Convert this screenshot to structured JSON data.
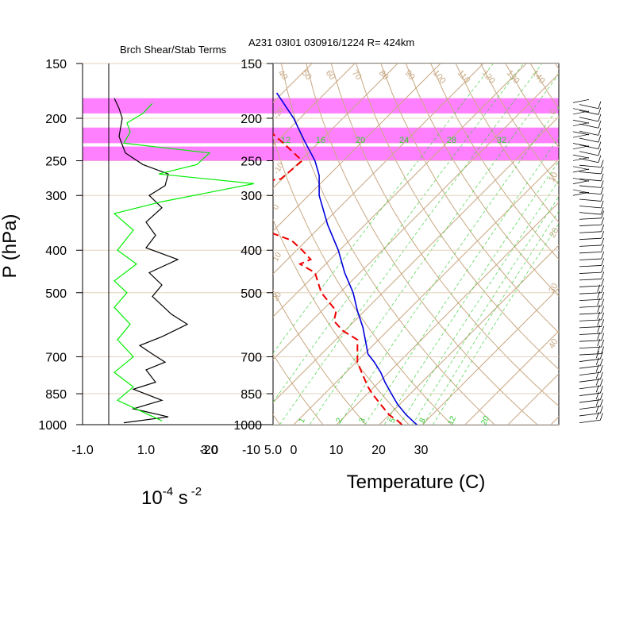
{
  "header": "A231 03I01 030916/1224 R= 424km",
  "colors": {
    "shear_band": "#ff80ff",
    "shear": "#000000",
    "stability": "#00ee00",
    "temperature": "#0000dd",
    "dewpoint": "#ee0000",
    "skewt_grid": "#c8a882",
    "mixing_ratio": "#33cc33"
  },
  "chart_data": [
    {
      "type": "line",
      "title": "Brch Shear/Stab Terms",
      "ylabel": "P (hPa)",
      "xlabel_base": "10",
      "xlabel_exp": "-4",
      "xlabel_unit": "s",
      "xlabel_unit_exp": "-2",
      "xlim": [
        -1.0,
        5.0
      ],
      "ylim": [
        1000,
        150
      ],
      "y_scale": "log",
      "x_ticks": [
        "-1.0",
        "1.0",
        "3.0",
        "5.0"
      ],
      "y_ticks": [
        "150",
        "200",
        "250",
        "300",
        "400",
        "500",
        "700",
        "850",
        "1000"
      ],
      "highlight_bands": [
        [
          180,
          195
        ],
        [
          210,
          228
        ],
        [
          232,
          250
        ]
      ],
      "series": [
        {
          "role": "shear",
          "points": [
            [
              0.0,
              180
            ],
            [
              0.15,
              190
            ],
            [
              0.25,
              200
            ],
            [
              0.15,
              220
            ],
            [
              0.35,
              240
            ],
            [
              0.9,
              255
            ],
            [
              1.7,
              268
            ],
            [
              1.6,
              285
            ],
            [
              1.1,
              300
            ],
            [
              1.5,
              320
            ],
            [
              1.0,
              345
            ],
            [
              1.3,
              370
            ],
            [
              1.0,
              395
            ],
            [
              2.0,
              420
            ],
            [
              1.1,
              450
            ],
            [
              1.5,
              480
            ],
            [
              1.2,
              510
            ],
            [
              1.8,
              560
            ],
            [
              2.3,
              590
            ],
            [
              1.5,
              630
            ],
            [
              0.8,
              660
            ],
            [
              1.2,
              690
            ],
            [
              1.6,
              720
            ],
            [
              1.0,
              750
            ],
            [
              1.3,
              800
            ],
            [
              0.6,
              830
            ],
            [
              1.5,
              880
            ],
            [
              0.6,
              920
            ],
            [
              1.7,
              960
            ],
            [
              0.3,
              990
            ]
          ]
        },
        {
          "role": "stability",
          "points": [
            [
              1.2,
              185
            ],
            [
              0.9,
              195
            ],
            [
              0.4,
              205
            ],
            [
              0.5,
              215
            ],
            [
              0.3,
              228
            ],
            [
              3.0,
              240
            ],
            [
              2.6,
              255
            ],
            [
              1.4,
              268
            ],
            [
              4.4,
              282
            ],
            [
              1.5,
              310
            ],
            [
              0.0,
              330
            ],
            [
              0.6,
              360
            ],
            [
              0.1,
              400
            ],
            [
              0.7,
              430
            ],
            [
              0.0,
              470
            ],
            [
              0.4,
              500
            ],
            [
              0.0,
              540
            ],
            [
              0.5,
              590
            ],
            [
              0.1,
              640
            ],
            [
              0.6,
              700
            ],
            [
              0.0,
              760
            ],
            [
              0.6,
              820
            ],
            [
              0.1,
              880
            ],
            [
              1.5,
              980
            ]
          ]
        }
      ]
    },
    {
      "type": "line",
      "title": "",
      "xlabel": "Temperature (C)",
      "ylabel": "",
      "xlim": [
        -25,
        40
      ],
      "ylim": [
        1000,
        150
      ],
      "y_scale": "log",
      "skew": "skew-T log-p",
      "x_ticks": [
        "-20",
        "-10",
        "0",
        "10",
        "20",
        "30"
      ],
      "y_ticks": [
        "150",
        "200",
        "250",
        "300",
        "400",
        "500",
        "700",
        "850",
        "1000"
      ],
      "dry_adiabat_labels": [
        "40",
        "50",
        "60",
        "70",
        "80",
        "90",
        "100",
        "110",
        "120",
        "130",
        "140",
        "150"
      ],
      "mixing_ratio_labels_top": [
        "12",
        "16",
        "20",
        "24",
        "28",
        "32"
      ],
      "mixing_ratio_labels_bottom": [
        "1",
        "2",
        "3",
        "5",
        "8",
        "12",
        "20"
      ],
      "isotherm_labels": [
        "-20",
        "-10",
        "0",
        "10",
        "20"
      ],
      "series": [
        {
          "role": "temperature",
          "points": [
            [
              29.0,
              1000
            ],
            [
              28.0,
              980
            ],
            [
              26.5,
              950
            ],
            [
              24.5,
              900
            ],
            [
              23.0,
              850
            ],
            [
              21.5,
              800
            ],
            [
              20.5,
              760
            ],
            [
              19.0,
              720
            ],
            [
              17.5,
              690
            ],
            [
              17.0,
              650
            ],
            [
              16.3,
              600
            ],
            [
              15.0,
              550
            ],
            [
              14.0,
              500
            ],
            [
              12.0,
              450
            ],
            [
              10.5,
              400
            ],
            [
              8.0,
              350
            ],
            [
              6.0,
              300
            ],
            [
              6.0,
              270
            ],
            [
              5.0,
              250
            ],
            [
              2.5,
              225
            ],
            [
              0.0,
              200
            ],
            [
              -4.0,
              175
            ]
          ]
        },
        {
          "role": "dewpoint",
          "points": [
            [
              25.5,
              1000
            ],
            [
              24.5,
              980
            ],
            [
              22.5,
              950
            ],
            [
              20.5,
              900
            ],
            [
              18.5,
              850
            ],
            [
              17.5,
              820
            ],
            [
              16.0,
              760
            ],
            [
              15.0,
              720
            ],
            [
              15.0,
              680
            ],
            [
              15.0,
              640
            ],
            [
              11.5,
              610
            ],
            [
              9.5,
              580
            ],
            [
              10.0,
              550
            ],
            [
              6.5,
              500
            ],
            [
              5.0,
              450
            ],
            [
              1.5,
              430
            ],
            [
              4.0,
              420
            ],
            [
              2.0,
              400
            ],
            [
              -0.5,
              380
            ],
            [
              -7.0,
              360
            ],
            [
              -14.0,
              345
            ],
            [
              -10.0,
              335
            ],
            [
              -16.0,
              320
            ],
            [
              -19.0,
              300
            ],
            [
              -15.0,
              285
            ],
            [
              -3.0,
              275
            ],
            [
              2.0,
              250
            ],
            [
              -2.0,
              230
            ],
            [
              -9.0,
              200
            ],
            [
              -15.0,
              180
            ]
          ]
        }
      ]
    }
  ]
}
